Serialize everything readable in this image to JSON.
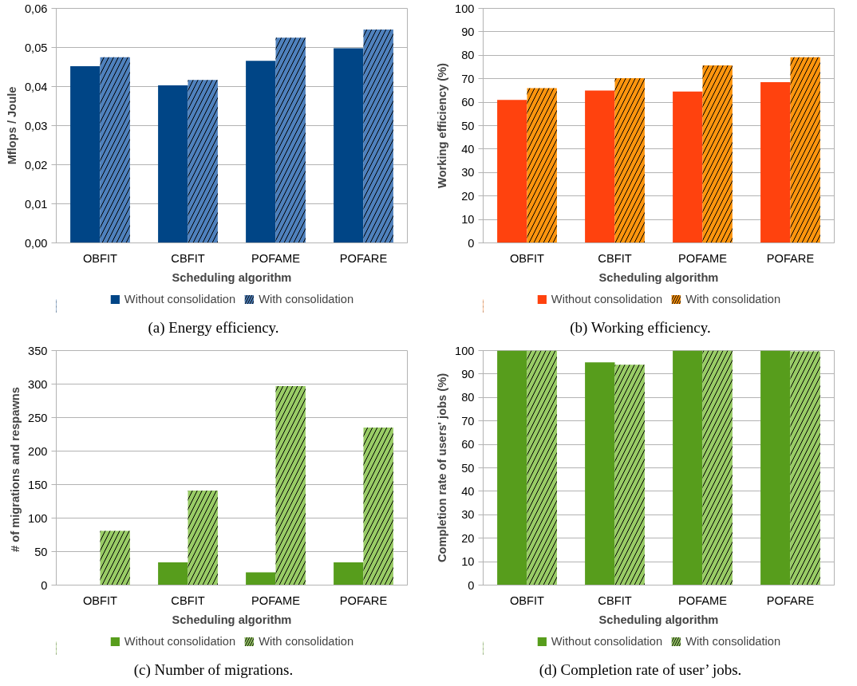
{
  "chart_data": [
    {
      "type": "bar",
      "categories": [
        "OBFIT",
        "CBFIT",
        "POFAME",
        "POFARE"
      ],
      "xlabel": "Scheduling algorithm",
      "ylabel": "Mflops / Joule",
      "series": [
        {
          "name": "Without consolidation",
          "color": "#004586",
          "values": [
            0.0452,
            0.0403,
            0.0466,
            0.0498
          ]
        },
        {
          "name": "With consolidation",
          "color": "#4f81bd",
          "values": [
            0.0475,
            0.0417,
            0.0525,
            0.0546
          ]
        }
      ],
      "ylim": [
        0,
        0.06
      ],
      "yticks": [
        {
          "value": 0,
          "label": "0,00"
        },
        {
          "value": 0.01,
          "label": "0,01"
        },
        {
          "value": 0.02,
          "label": "0,02"
        },
        {
          "value": 0.03,
          "label": "0,03"
        },
        {
          "value": 0.04,
          "label": "0,04"
        },
        {
          "value": 0.05,
          "label": "0,05"
        },
        {
          "value": 0.06,
          "label": "0,06"
        }
      ],
      "grid": "y",
      "legend": "bottom",
      "annotations": [
        "(a)  Energy efficiency."
      ]
    },
    {
      "type": "bar",
      "categories": [
        "OBFIT",
        "CBFIT",
        "POFAME",
        "POFARE"
      ],
      "xlabel": "Scheduling algorithm",
      "ylabel": "Working efficiency (%)",
      "series": [
        {
          "name": "Without consolidation",
          "color": "#ff420e",
          "values": [
            61,
            65,
            64.5,
            68.5
          ]
        },
        {
          "name": "With consolidation",
          "color": "#ff950e",
          "values": [
            66,
            70.2,
            75.7,
            79.2
          ]
        }
      ],
      "ylim": [
        0,
        100
      ],
      "yticks": [
        0,
        10,
        20,
        30,
        40,
        50,
        60,
        70,
        80,
        90,
        100
      ],
      "grid": "y",
      "legend": "bottom",
      "annotations": [
        "(b)  Working efficiency."
      ]
    },
    {
      "type": "bar",
      "categories": [
        "OBFIT",
        "CBFIT",
        "POFAME",
        "POFARE"
      ],
      "xlabel": "Scheduling algorithm",
      "ylabel": "# of  migrations and respawns",
      "series": [
        {
          "name": "Without consolidation",
          "color": "#579d1c",
          "values": [
            0,
            34,
            19,
            34
          ]
        },
        {
          "name": "With consolidation",
          "color": "#99cc66",
          "values": [
            81,
            141,
            297,
            235
          ]
        }
      ],
      "ylim": [
        0,
        350
      ],
      "yticks": [
        0,
        50,
        100,
        150,
        200,
        250,
        300,
        350
      ],
      "grid": "y",
      "legend": "bottom",
      "annotations": [
        "(c)  Number of migrations."
      ]
    },
    {
      "type": "bar",
      "categories": [
        "OBFIT",
        "CBFIT",
        "POFAME",
        "POFARE"
      ],
      "xlabel": "Scheduling algorithm",
      "ylabel": "Completion rate of users' jobs (%)",
      "series": [
        {
          "name": "Without consolidation",
          "color": "#579d1c",
          "values": [
            100,
            95,
            100,
            100
          ]
        },
        {
          "name": "With consolidation",
          "color": "#99cc66",
          "values": [
            100,
            94,
            100,
            99.7
          ]
        }
      ],
      "ylim": [
        0,
        100
      ],
      "yticks": [
        0,
        10,
        20,
        30,
        40,
        50,
        60,
        70,
        80,
        90,
        100
      ],
      "grid": "y",
      "legend": "bottom",
      "annotations": [
        "(d)  Completion rate of user’ jobs."
      ]
    }
  ]
}
